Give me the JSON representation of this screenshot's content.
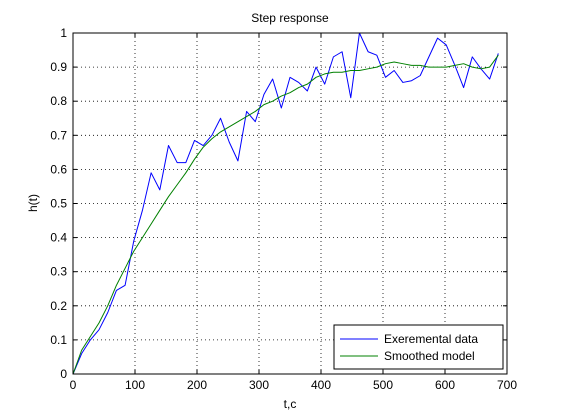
{
  "chart_data": {
    "type": "line",
    "title": "Step response",
    "xlabel": "t,c",
    "ylabel": "h(t)",
    "xlim": [
      0,
      700
    ],
    "ylim": [
      0,
      1
    ],
    "xticks": [
      0,
      100,
      200,
      300,
      400,
      500,
      600,
      700
    ],
    "yticks": [
      0,
      0.1,
      0.2,
      0.3,
      0.4,
      0.5,
      0.6,
      0.7,
      0.8,
      0.9,
      1
    ],
    "xtick_labels": [
      "0",
      "100",
      "200",
      "300",
      "400",
      "500",
      "600",
      "700"
    ],
    "ytick_labels": [
      "0",
      "0.1",
      "0.2",
      "0.3",
      "0.4",
      "0.5",
      "0.6",
      "0.7",
      "0.8",
      "0.9",
      "1"
    ],
    "grid": true,
    "grid_style": "dotted",
    "legend_position": "bottom-right",
    "series": [
      {
        "name": "Exeremental data",
        "color": "#0000ff",
        "x": [
          0,
          14,
          28,
          42,
          56,
          70,
          84,
          98,
          112,
          126,
          140,
          154,
          168,
          182,
          196,
          210,
          224,
          238,
          252,
          266,
          280,
          294,
          308,
          322,
          336,
          350,
          364,
          378,
          392,
          406,
          420,
          434,
          448,
          462,
          476,
          490,
          504,
          518,
          532,
          546,
          560,
          574,
          588,
          602,
          616,
          630,
          644,
          658,
          672,
          686
        ],
        "y": [
          0.0,
          0.06,
          0.1,
          0.13,
          0.18,
          0.245,
          0.26,
          0.39,
          0.48,
          0.59,
          0.54,
          0.67,
          0.62,
          0.62,
          0.685,
          0.67,
          0.7,
          0.75,
          0.68,
          0.625,
          0.77,
          0.74,
          0.82,
          0.865,
          0.78,
          0.87,
          0.855,
          0.83,
          0.9,
          0.85,
          0.93,
          0.945,
          0.81,
          1.0,
          0.945,
          0.935,
          0.87,
          0.89,
          0.855,
          0.86,
          0.875,
          0.93,
          0.985,
          0.965,
          0.905,
          0.84,
          0.93,
          0.895,
          0.865,
          0.94
        ]
      },
      {
        "name": "Smoothed model",
        "color": "#008000",
        "x": [
          0,
          14,
          28,
          42,
          56,
          70,
          84,
          98,
          112,
          126,
          140,
          154,
          168,
          182,
          196,
          210,
          224,
          238,
          252,
          266,
          280,
          294,
          308,
          322,
          336,
          350,
          364,
          378,
          392,
          406,
          420,
          434,
          448,
          462,
          476,
          490,
          504,
          518,
          532,
          546,
          560,
          574,
          588,
          602,
          616,
          630,
          644,
          658,
          672,
          686
        ],
        "y": [
          0.0,
          0.07,
          0.11,
          0.15,
          0.2,
          0.26,
          0.31,
          0.36,
          0.4,
          0.44,
          0.48,
          0.52,
          0.555,
          0.59,
          0.63,
          0.665,
          0.69,
          0.71,
          0.725,
          0.74,
          0.755,
          0.77,
          0.79,
          0.8,
          0.815,
          0.825,
          0.84,
          0.85,
          0.87,
          0.88,
          0.885,
          0.885,
          0.89,
          0.89,
          0.895,
          0.9,
          0.91,
          0.915,
          0.91,
          0.905,
          0.905,
          0.9,
          0.9,
          0.9,
          0.905,
          0.91,
          0.9,
          0.895,
          0.9,
          0.935
        ]
      }
    ]
  }
}
